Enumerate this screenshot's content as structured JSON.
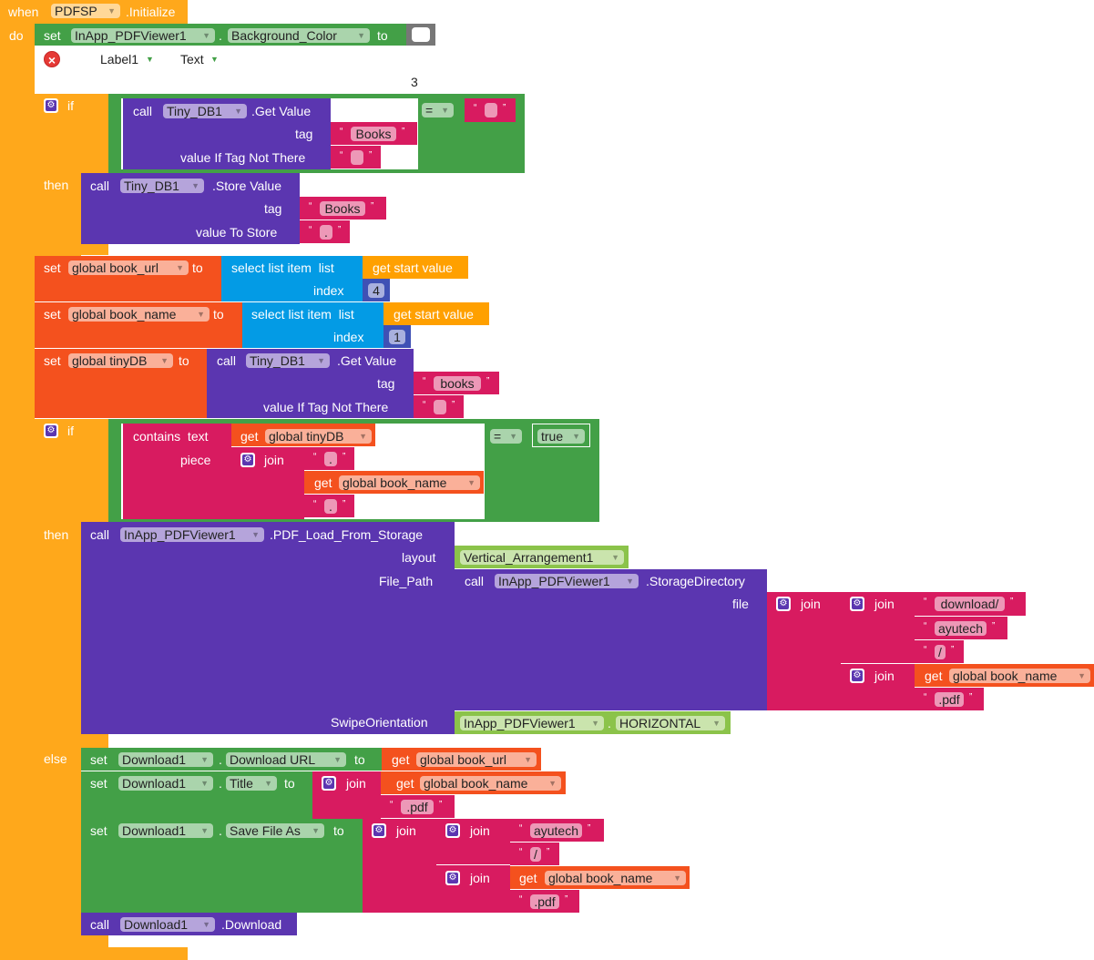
{
  "colors": {
    "event": "#FFA81B",
    "green": "#43A047",
    "purple": "#5B36B0",
    "pink": "#D81B60",
    "deeporange": "#F4511E",
    "blue": "#039BE5",
    "orange": "#FFA000",
    "indigo": "#3F51B5",
    "lightgreen": "#8BC34A",
    "grey": "#777777",
    "white": "#FFFFFF"
  },
  "event": {
    "when": "when",
    "component": "PDFSP",
    "event": ".Initialize",
    "do": "do"
  },
  "set_bg": {
    "set": "set",
    "component": "InApp_PDFViewer1",
    "dot": ".",
    "property": "Background_Color",
    "to": "to",
    "color": "#FFFFFF"
  },
  "error_row": {
    "component": "Label1",
    "property": "Text",
    "number": "3"
  },
  "if1": {
    "if": "if",
    "then": "then",
    "operator": "=",
    "compare_value": "",
    "get": {
      "call": "call",
      "component": "Tiny_DB1",
      "method": ".Get Value",
      "tag_label": "tag",
      "default_label": "value If Tag Not There",
      "tag": "Books",
      "default": ""
    },
    "store": {
      "call": "call",
      "component": "Tiny_DB1",
      "method": ".Store Value",
      "tag_label": "tag",
      "value_label": "value To Store",
      "tag": "Books",
      "value": "."
    }
  },
  "set_url": {
    "set": "set",
    "variable": "global book_url",
    "to": "to",
    "select": "select list item  list",
    "index_label": "index",
    "list": "get start value",
    "index": "4"
  },
  "set_name": {
    "set": "set",
    "variable": "global book_name",
    "to": "to",
    "select": "select list item  list",
    "index_label": "index",
    "list": "get start value",
    "index": "1"
  },
  "set_tinydb": {
    "set": "set",
    "variable": "global tinyDB",
    "to": "to",
    "call": "call",
    "component": "Tiny_DB1",
    "method": ".Get Value",
    "tag_label": "tag",
    "default_label": "value If Tag Not There",
    "tag": "books",
    "default": ""
  },
  "if2": {
    "if": "if",
    "then": "then",
    "else": "else",
    "contains": {
      "label": "contains  text",
      "piece_label": "piece",
      "get": "get",
      "text_var": "global tinyDB",
      "join": "join",
      "part1": ".",
      "get2": "get",
      "part2_var": "global book_name",
      "part3": "."
    },
    "operator": "=",
    "value": "true",
    "load": {
      "call": "call",
      "component": "InApp_PDFViewer1",
      "method": ".PDF_Load_From_Storage",
      "layout_label": "layout",
      "layout": "Vertical_Arrangement1",
      "file_path_label": "File_Path",
      "swipe_label": "SwipeOrientation",
      "storage": {
        "call": "call",
        "component": "InApp_PDFViewer1",
        "method": ".StorageDirectory",
        "file_label": "file",
        "join": "join",
        "join_inner1": "join",
        "s1": "download/",
        "s2": "ayutech",
        "s3": "/",
        "join_inner2": "join",
        "get": "get",
        "var": "global book_name",
        "s4": ".pdf"
      },
      "swipe_component": "InApp_PDFViewer1",
      "swipe_dot": ".",
      "swipe_value": "HORIZONTAL"
    },
    "else_blocks": {
      "url": {
        "set": "set",
        "component": "Download1",
        "dot": ".",
        "property": "Download URL",
        "to": "to",
        "get": "get",
        "var": "global book_url"
      },
      "title": {
        "set": "set",
        "component": "Download1",
        "dot": ".",
        "property": "Title",
        "to": "to",
        "join": "join",
        "get": "get",
        "var": "global book_name",
        "suffix": ".pdf"
      },
      "save": {
        "set": "set",
        "component": "Download1",
        "dot": ".",
        "property": "Save File As",
        "to": "to",
        "join": "join",
        "join1": "join",
        "s1": "ayutech",
        "s2": "/",
        "join2": "join",
        "get": "get",
        "var": "global book_name",
        "s3": ".pdf"
      },
      "download": {
        "call": "call",
        "component": "Download1",
        "method": ".Download"
      }
    }
  }
}
